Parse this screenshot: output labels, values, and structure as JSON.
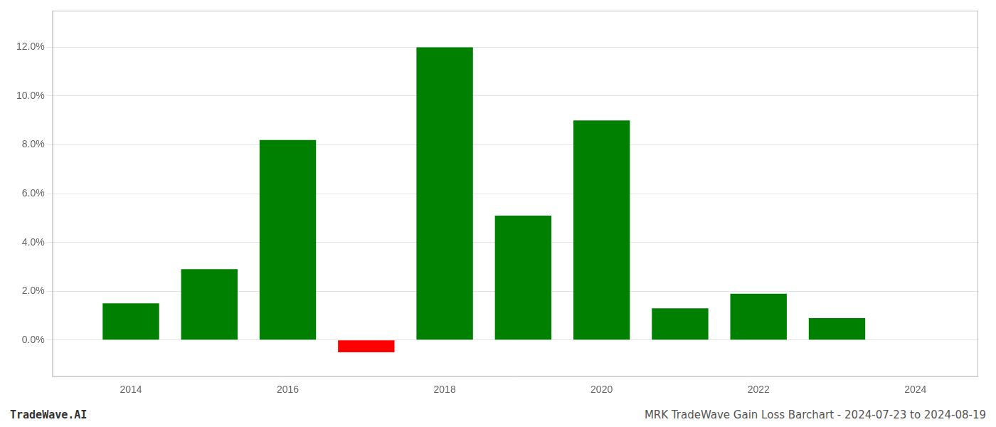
{
  "chart_data": {
    "type": "bar",
    "title": "MRK TradeWave Gain Loss Barchart - 2024-07-23 to 2024-08-19",
    "annotations": [
      "TradeWave.AI"
    ],
    "x": [
      2014,
      2015,
      2016,
      2017,
      2018,
      2019,
      2020,
      2021,
      2022,
      2023
    ],
    "values": [
      0.015,
      0.029,
      0.082,
      -0.005,
      0.12,
      0.051,
      0.09,
      0.013,
      0.019,
      0.009
    ],
    "colors": [
      "#008000",
      "#008000",
      "#008000",
      "#ff0000",
      "#008000",
      "#008000",
      "#008000",
      "#008000",
      "#008000",
      "#008000"
    ],
    "xlim": [
      2013.0,
      2024.8
    ],
    "xticks": [
      2014,
      2016,
      2018,
      2020,
      2022,
      2024
    ],
    "ylim": [
      -0.015,
      0.135
    ],
    "yticks": [
      {
        "value": 0.0,
        "label": "0.0%"
      },
      {
        "value": 0.02,
        "label": "2.0%"
      },
      {
        "value": 0.04,
        "label": "4.0%"
      },
      {
        "value": 0.06,
        "label": "6.0%"
      },
      {
        "value": 0.08,
        "label": "8.0%"
      },
      {
        "value": 0.1,
        "label": "10.0%"
      },
      {
        "value": 0.12,
        "label": "12.0%"
      }
    ],
    "grid": true
  }
}
